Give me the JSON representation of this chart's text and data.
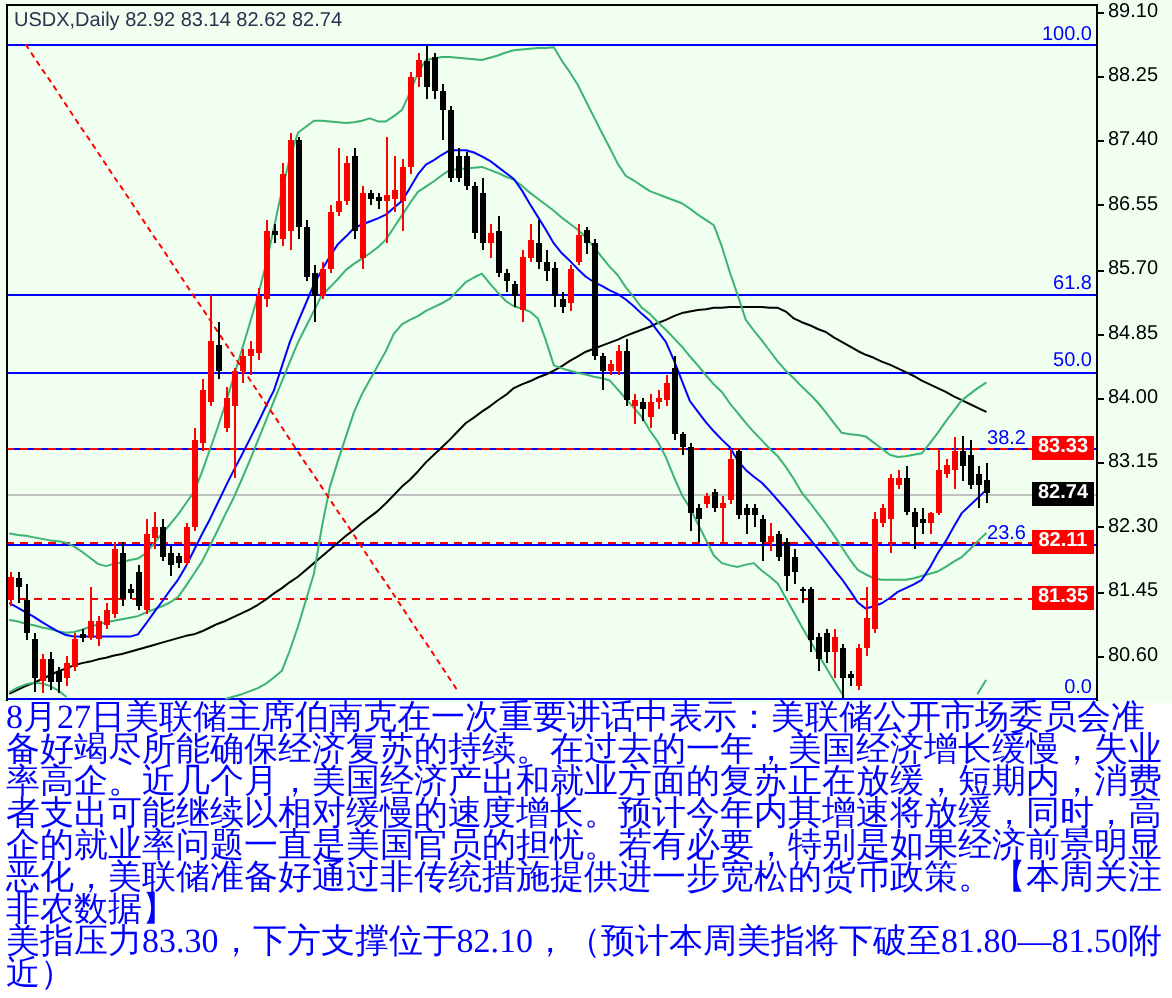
{
  "chart_data": {
    "type": "candlestick",
    "title": "USDX,Daily 82.92 83.14 82.62 82.74",
    "categories": [
      null,
      null,
      null,
      null,
      null,
      null,
      null,
      null,
      null,
      null,
      null,
      null,
      null,
      null,
      null,
      null,
      null,
      null,
      null,
      null,
      null,
      null,
      null,
      null,
      null,
      null,
      null,
      null,
      null,
      null,
      null,
      null,
      null,
      null,
      null,
      null,
      null,
      null,
      null,
      null,
      null,
      null,
      null,
      null,
      null,
      null,
      null,
      null,
      null,
      null,
      null,
      null,
      null,
      null,
      null,
      null,
      null,
      null,
      null,
      null,
      null,
      null,
      null,
      null,
      null,
      null,
      null,
      null,
      null,
      null,
      null,
      null,
      null,
      null,
      null,
      null,
      null,
      null,
      null,
      null,
      null,
      null,
      null,
      null,
      null,
      null,
      null,
      null,
      null,
      null,
      null,
      null,
      null,
      null,
      null,
      null,
      null,
      null,
      null,
      null,
      null,
      null,
      null,
      null,
      null,
      null,
      null,
      null,
      null,
      null,
      null,
      null,
      null,
      null,
      null,
      null,
      null,
      null,
      null,
      null,
      null,
      null,
      null
    ],
    "ohlc": [
      [
        81.33,
        81.7,
        81.25,
        81.64
      ],
      [
        81.62,
        81.7,
        81.3,
        81.5
      ],
      [
        81.33,
        81.55,
        80.8,
        80.9
      ],
      [
        80.82,
        80.9,
        80.12,
        80.3
      ],
      [
        80.27,
        80.62,
        80.1,
        80.55
      ],
      [
        80.55,
        80.65,
        80.15,
        80.25
      ],
      [
        80.4,
        80.45,
        80.1,
        80.25
      ],
      [
        80.3,
        80.6,
        80.2,
        80.5
      ],
      [
        80.45,
        80.9,
        80.4,
        80.82
      ],
      [
        80.88,
        80.95,
        80.78,
        80.83
      ],
      [
        80.83,
        81.5,
        80.8,
        81.05
      ],
      [
        80.82,
        81.12,
        80.72,
        81.05
      ],
      [
        81.0,
        81.3,
        80.95,
        81.2
      ],
      [
        81.15,
        82.1,
        81.1,
        82.0
      ],
      [
        81.95,
        82.1,
        81.25,
        81.35
      ],
      [
        81.48,
        81.55,
        81.35,
        81.42
      ],
      [
        81.7,
        81.8,
        81.2,
        81.25
      ],
      [
        81.2,
        82.4,
        81.15,
        82.2
      ],
      [
        82.15,
        82.5,
        82.0,
        82.3
      ],
      [
        82.3,
        82.4,
        81.85,
        81.9
      ],
      [
        81.95,
        82.05,
        81.65,
        81.8
      ],
      [
        81.92,
        81.95,
        81.75,
        81.82
      ],
      [
        81.82,
        82.35,
        81.8,
        82.3
      ],
      [
        82.3,
        83.6,
        82.25,
        83.45
      ],
      [
        83.4,
        84.25,
        83.3,
        84.1
      ],
      [
        83.95,
        85.36,
        83.9,
        84.75
      ],
      [
        84.7,
        85.0,
        84.25,
        84.35
      ],
      [
        83.6,
        84.15,
        83.55,
        84.0
      ],
      [
        83.9,
        84.4,
        82.95,
        84.35
      ],
      [
        84.35,
        84.65,
        84.2,
        84.55
      ],
      [
        84.55,
        84.75,
        84.3,
        84.65
      ],
      [
        84.6,
        85.45,
        84.5,
        85.35
      ],
      [
        85.3,
        86.35,
        85.2,
        86.2
      ],
      [
        86.2,
        86.3,
        86.05,
        86.15
      ],
      [
        86.1,
        87.1,
        86.0,
        86.95
      ],
      [
        86.2,
        87.5,
        85.95,
        87.4
      ],
      [
        87.4,
        87.45,
        86.1,
        86.25
      ],
      [
        86.25,
        86.35,
        85.55,
        85.6
      ],
      [
        85.65,
        85.75,
        85.0,
        85.35
      ],
      [
        85.35,
        85.8,
        85.3,
        85.7
      ],
      [
        85.7,
        86.55,
        85.65,
        86.45
      ],
      [
        86.45,
        87.3,
        86.4,
        86.6
      ],
      [
        86.6,
        87.2,
        86.55,
        87.1
      ],
      [
        87.2,
        87.3,
        86.1,
        86.2
      ],
      [
        85.85,
        86.8,
        85.7,
        86.7
      ],
      [
        86.7,
        86.75,
        86.55,
        86.63
      ],
      [
        86.65,
        86.7,
        86.5,
        86.6
      ],
      [
        86.6,
        87.45,
        86.05,
        86.68
      ],
      [
        86.62,
        87.2,
        86.45,
        86.75
      ],
      [
        86.6,
        87.15,
        86.2,
        87.05
      ],
      [
        87.05,
        88.3,
        86.95,
        88.24
      ],
      [
        88.24,
        88.55,
        88.1,
        88.46
      ],
      [
        88.45,
        88.66,
        87.95,
        88.1
      ],
      [
        88.5,
        88.55,
        87.95,
        88.05
      ],
      [
        88.05,
        88.15,
        87.4,
        87.8
      ],
      [
        87.8,
        87.85,
        86.85,
        86.9
      ],
      [
        87.2,
        87.3,
        86.85,
        86.9
      ],
      [
        87.2,
        87.25,
        86.75,
        86.8
      ],
      [
        86.8,
        86.85,
        86.1,
        86.18
      ],
      [
        86.7,
        86.9,
        85.95,
        86.05
      ],
      [
        86.05,
        86.3,
        85.85,
        86.18
      ],
      [
        86.2,
        86.4,
        85.6,
        85.65
      ],
      [
        85.65,
        85.7,
        85.4,
        85.55
      ],
      [
        85.5,
        85.55,
        85.2,
        85.35
      ],
      [
        85.16,
        85.95,
        85.0,
        85.86
      ],
      [
        85.85,
        86.3,
        85.8,
        86.08
      ],
      [
        86.05,
        86.35,
        85.7,
        85.8
      ],
      [
        85.8,
        85.95,
        85.55,
        85.68
      ],
      [
        85.72,
        85.8,
        85.2,
        85.35
      ],
      [
        85.3,
        85.4,
        85.12,
        85.2
      ],
      [
        85.25,
        85.75,
        85.15,
        85.7
      ],
      [
        85.8,
        86.3,
        85.75,
        86.15
      ],
      [
        86.22,
        86.25,
        85.9,
        86.05
      ],
      [
        86.05,
        86.1,
        84.5,
        84.55
      ],
      [
        84.55,
        84.6,
        84.1,
        84.35
      ],
      [
        84.35,
        84.5,
        84.3,
        84.45
      ],
      [
        84.35,
        84.7,
        84.3,
        84.62
      ],
      [
        84.62,
        84.78,
        83.9,
        83.97
      ],
      [
        83.9,
        84.05,
        83.65,
        83.97
      ],
      [
        83.95,
        84.0,
        83.7,
        83.85
      ],
      [
        83.75,
        84.05,
        83.6,
        83.95
      ],
      [
        83.95,
        84.1,
        83.85,
        84.0
      ],
      [
        83.97,
        84.3,
        83.9,
        84.2
      ],
      [
        84.4,
        84.55,
        83.45,
        83.52
      ],
      [
        83.52,
        83.55,
        83.25,
        83.35
      ],
      [
        83.35,
        83.4,
        82.25,
        82.48
      ],
      [
        82.55,
        82.6,
        82.1,
        82.4
      ],
      [
        82.6,
        82.75,
        82.55,
        82.7
      ],
      [
        82.76,
        82.8,
        82.5,
        82.55
      ],
      [
        82.55,
        82.7,
        82.1,
        82.62
      ],
      [
        82.65,
        83.33,
        82.6,
        83.2
      ],
      [
        83.3,
        83.33,
        82.4,
        82.45
      ],
      [
        82.55,
        82.6,
        82.2,
        82.45
      ],
      [
        82.55,
        82.6,
        82.3,
        82.45
      ],
      [
        82.4,
        82.45,
        81.85,
        82.1
      ],
      [
        82.1,
        82.35,
        81.98,
        82.18
      ],
      [
        82.2,
        82.25,
        81.85,
        81.9
      ],
      [
        82.1,
        82.15,
        81.45,
        81.65
      ],
      [
        81.9,
        82.0,
        81.55,
        81.7
      ],
      [
        81.48,
        81.5,
        81.3,
        81.45
      ],
      [
        81.48,
        81.5,
        80.65,
        80.8
      ],
      [
        80.85,
        80.9,
        80.4,
        80.55
      ],
      [
        80.9,
        80.95,
        80.5,
        80.65
      ],
      [
        80.65,
        80.95,
        80.3,
        80.85
      ],
      [
        80.7,
        80.75,
        80.04,
        80.3
      ],
      [
        80.35,
        80.4,
        80.2,
        80.3
      ],
      [
        80.2,
        80.75,
        80.15,
        80.7
      ],
      [
        80.7,
        81.5,
        80.6,
        81.1
      ],
      [
        80.95,
        82.5,
        80.9,
        82.4
      ],
      [
        82.35,
        82.6,
        82.3,
        82.55
      ],
      [
        82.4,
        83.0,
        81.95,
        82.95
      ],
      [
        82.85,
        83.05,
        82.8,
        82.95
      ],
      [
        82.95,
        83.1,
        82.45,
        82.5
      ],
      [
        82.5,
        82.55,
        82.0,
        82.3
      ],
      [
        82.4,
        82.55,
        82.2,
        82.35
      ],
      [
        82.35,
        82.5,
        82.2,
        82.48
      ],
      [
        82.48,
        83.33,
        82.45,
        83.05
      ],
      [
        83.0,
        83.2,
        82.95,
        83.12
      ],
      [
        83.05,
        83.48,
        82.8,
        83.3
      ],
      [
        83.3,
        83.5,
        82.9,
        83.1
      ],
      [
        83.25,
        83.45,
        82.8,
        82.85
      ],
      [
        83.0,
        83.1,
        82.55,
        82.85
      ],
      [
        82.92,
        83.14,
        82.62,
        82.74
      ]
    ],
    "colors": [
      "#ff0000",
      "#000000",
      "#000000",
      "#000000",
      "#ff0000",
      "#000000",
      "#000000",
      "#ff0000",
      "#ff0000",
      "#000000",
      "#ff0000",
      "#ff0000",
      "#ff0000",
      "#ff0000",
      "#000000",
      "#000000",
      "#000000",
      "#ff0000",
      "#ff0000",
      "#000000",
      "#000000",
      "#000000",
      "#ff0000",
      "#ff0000",
      "#ff0000",
      "#ff0000",
      "#000000",
      "#ff0000",
      "#ff0000",
      "#ff0000",
      "#ff0000",
      "#ff0000",
      "#ff0000",
      "#000000",
      "#ff0000",
      "#ff0000",
      "#000000",
      "#000000",
      "#000000",
      "#ff0000",
      "#ff0000",
      "#ff0000",
      "#ff0000",
      "#000000",
      "#ff0000",
      "#000000",
      "#000000",
      "#ff0000",
      "#ff0000",
      "#ff0000",
      "#ff0000",
      "#ff0000",
      "#000000",
      "#000000",
      "#000000",
      "#000000",
      "#000000",
      "#000000",
      "#000000",
      "#000000",
      "#ff0000",
      "#000000",
      "#000000",
      "#000000",
      "#ff0000",
      "#ff0000",
      "#000000",
      "#000000",
      "#000000",
      "#000000",
      "#ff0000",
      "#ff0000",
      "#000000",
      "#000000",
      "#000000",
      "#ff0000",
      "#ff0000",
      "#000000",
      "#ff0000",
      "#000000",
      "#ff0000",
      "#ff0000",
      "#ff0000",
      "#000000",
      "#000000",
      "#000000",
      "#000000",
      "#ff0000",
      "#000000",
      "#ff0000",
      "#ff0000",
      "#000000",
      "#000000",
      "#000000",
      "#000000",
      "#ff0000",
      "#000000",
      "#000000",
      "#000000",
      "#000000",
      "#000000",
      "#000000",
      "#000000",
      "#ff0000",
      "#000000",
      "#000000",
      "#ff0000",
      "#ff0000",
      "#ff0000",
      "#ff0000",
      "#ff0000",
      "#ff0000",
      "#000000",
      "#000000",
      "#000000",
      "#ff0000",
      "#ff0000",
      "#ff0000",
      "#ff0000",
      "#000000",
      "#000000",
      "#000000",
      "#000000"
    ],
    "series": [
      {
        "type": "line",
        "color": "#000000",
        "values": [
          80.1,
          80.15,
          80.2,
          80.24,
          80.29,
          80.34,
          80.39,
          80.43,
          80.47,
          80.5,
          80.52,
          80.55,
          80.57,
          80.6,
          80.62,
          80.65,
          80.68,
          80.71,
          80.74,
          80.77,
          80.8,
          80.83,
          80.86,
          80.88,
          80.92,
          80.97,
          81.02,
          81.06,
          81.11,
          81.16,
          81.21,
          81.27,
          81.34,
          81.42,
          81.49,
          81.57,
          81.64,
          81.73,
          81.82,
          81.91,
          82.0,
          82.09,
          82.18,
          82.26,
          82.35,
          82.43,
          82.51,
          82.61,
          82.72,
          82.83,
          82.92,
          83.03,
          83.15,
          83.25,
          83.35,
          83.45,
          83.56,
          83.67,
          83.74,
          83.82,
          83.89,
          83.97,
          84.04,
          84.13,
          84.18,
          84.22,
          84.27,
          84.31,
          84.36,
          84.42,
          84.49,
          84.55,
          84.61,
          84.65,
          84.69,
          84.73,
          84.77,
          84.82,
          84.86,
          84.9,
          84.94,
          84.99,
          85.03,
          85.08,
          85.12,
          85.14,
          85.16,
          85.17,
          85.19,
          85.19,
          85.2,
          85.2,
          85.2,
          85.2,
          85.2,
          85.19,
          85.19,
          85.14,
          85.05,
          85.0,
          84.96,
          84.91,
          84.87,
          84.8,
          84.74,
          84.68,
          84.62,
          84.57,
          84.53,
          84.48,
          84.44,
          84.39,
          84.34,
          84.29,
          84.23,
          84.18,
          84.13,
          84.08,
          84.02,
          83.97,
          83.92,
          83.87,
          83.82
        ]
      },
      {
        "type": "line",
        "color": "#3cb371",
        "values": [
          82.21,
          82.19,
          82.18,
          82.16,
          82.14,
          82.12,
          82.11,
          82.09,
          82.04,
          81.97,
          81.89,
          81.81,
          81.78,
          81.81,
          81.83,
          81.86,
          81.88,
          81.95,
          82.08,
          82.21,
          82.33,
          82.46,
          82.61,
          82.76,
          83.02,
          83.32,
          83.62,
          83.94,
          84.29,
          84.64,
          84.99,
          85.35,
          85.76,
          86.25,
          86.74,
          87.17,
          87.5,
          87.58,
          87.66,
          87.66,
          87.65,
          87.64,
          87.63,
          87.64,
          87.66,
          87.69,
          87.65,
          87.65,
          87.72,
          87.8,
          88.03,
          88.29,
          88.46,
          88.48,
          88.5,
          88.5,
          88.49,
          88.48,
          88.47,
          88.46,
          88.49,
          88.52,
          88.56,
          88.59,
          88.6,
          88.61,
          88.62,
          88.62,
          88.63,
          88.45,
          88.3,
          88.13,
          87.92,
          87.71,
          87.5,
          87.3,
          87.09,
          86.93,
          86.87,
          86.8,
          86.73,
          86.69,
          86.65,
          86.61,
          86.57,
          86.5,
          86.42,
          86.35,
          86.28,
          86.0,
          85.66,
          85.35,
          85.03,
          84.89,
          84.76,
          84.62,
          84.48,
          84.36,
          84.26,
          84.15,
          84.05,
          83.94,
          83.81,
          83.67,
          83.54,
          83.52,
          83.51,
          83.49,
          83.41,
          83.33,
          83.25,
          83.22,
          83.23,
          83.25,
          83.27,
          83.4,
          83.54,
          83.69,
          83.83,
          83.97,
          84.05,
          84.13,
          84.2
        ]
      },
      {
        "type": "line",
        "color": "#3cb371",
        "values": [
          81.07,
          81.05,
          81.02,
          81.0,
          80.97,
          80.95,
          80.92,
          80.9,
          80.91,
          80.94,
          80.98,
          81.01,
          81.04,
          81.06,
          81.08,
          81.1,
          81.12,
          81.17,
          81.21,
          81.25,
          81.3,
          81.37,
          81.52,
          81.68,
          81.84,
          82.05,
          82.26,
          82.48,
          82.69,
          82.93,
          83.18,
          83.44,
          83.7,
          83.96,
          84.22,
          84.48,
          84.73,
          84.94,
          85.15,
          85.36,
          85.46,
          85.57,
          85.69,
          85.77,
          85.84,
          85.91,
          85.99,
          86.09,
          86.25,
          86.41,
          86.57,
          86.72,
          86.79,
          86.86,
          86.94,
          87.01,
          87.02,
          87.03,
          87.04,
          87.05,
          87.01,
          86.97,
          86.92,
          86.88,
          86.8,
          86.71,
          86.63,
          86.55,
          86.47,
          86.38,
          86.3,
          86.22,
          86.12,
          85.99,
          85.86,
          85.73,
          85.62,
          85.46,
          85.33,
          85.19,
          85.11,
          85.0,
          84.9,
          84.79,
          84.68,
          84.55,
          84.43,
          84.3,
          84.18,
          84.08,
          83.93,
          83.8,
          83.67,
          83.55,
          83.44,
          83.33,
          83.23,
          83.09,
          82.93,
          82.75,
          82.62,
          82.48,
          82.34,
          82.19,
          82.03,
          81.87,
          81.73,
          81.67,
          81.62,
          81.6,
          81.6,
          81.6,
          81.6,
          81.62,
          81.65,
          81.68,
          81.71,
          81.77,
          81.84,
          81.9,
          82.0,
          82.11,
          82.21
        ]
      },
      {
        "type": "line",
        "color": "#3cb371",
        "values": [
          80.12,
          80.18,
          80.22,
          80.24,
          80.23,
          80.2,
          80.14,
          80.06,
          null,
          null,
          null,
          null,
          null,
          null,
          null,
          null,
          null,
          null,
          null,
          null,
          null,
          null,
          null,
          null,
          null,
          null,
          null,
          80.03,
          80.06,
          80.09,
          80.13,
          80.17,
          80.23,
          80.31,
          80.4,
          80.67,
          80.98,
          81.33,
          81.68,
          82.3,
          82.83,
          83.17,
          83.49,
          83.81,
          84.05,
          84.24,
          84.43,
          84.62,
          84.85,
          84.97,
          85.03,
          85.08,
          85.15,
          85.2,
          85.25,
          85.31,
          85.42,
          85.53,
          85.59,
          85.64,
          85.51,
          85.39,
          85.28,
          85.21,
          85.18,
          85.14,
          85.05,
          84.76,
          84.43,
          84.39,
          84.36,
          84.33,
          84.31,
          84.28,
          84.26,
          84.23,
          84.11,
          83.99,
          83.87,
          83.75,
          83.57,
          83.42,
          83.22,
          82.96,
          82.72,
          82.55,
          82.34,
          82.13,
          81.92,
          81.82,
          81.79,
          81.77,
          81.8,
          81.82,
          81.72,
          81.64,
          81.55,
          81.36,
          81.17,
          80.98,
          80.8,
          80.62,
          80.45,
          80.27,
          80.1,
          null,
          null,
          null,
          null,
          null,
          null,
          null,
          null,
          null,
          null,
          null,
          null,
          null,
          null,
          null,
          null,
          80.1,
          80.27
        ]
      },
      {
        "type": "line",
        "color": "#0000ff",
        "values": [
          81.29,
          81.23,
          81.17,
          81.11,
          81.04,
          80.98,
          80.92,
          80.87,
          80.85,
          80.85,
          80.85,
          80.85,
          80.85,
          80.85,
          80.85,
          80.85,
          80.88,
          81.02,
          81.17,
          81.31,
          81.46,
          81.6,
          81.78,
          81.99,
          82.2,
          82.4,
          82.62,
          82.84,
          83.05,
          83.25,
          83.46,
          83.67,
          83.89,
          84.1,
          84.42,
          84.74,
          85.0,
          85.25,
          85.5,
          85.69,
          85.87,
          86.03,
          86.13,
          86.24,
          86.29,
          86.33,
          86.37,
          86.42,
          86.51,
          86.6,
          86.77,
          86.95,
          87.08,
          87.14,
          87.21,
          87.27,
          87.27,
          87.27,
          87.24,
          87.19,
          87.13,
          87.05,
          86.97,
          86.89,
          86.74,
          86.56,
          86.39,
          86.22,
          86.04,
          85.91,
          85.81,
          85.7,
          85.6,
          85.53,
          85.48,
          85.42,
          85.37,
          85.3,
          85.21,
          85.11,
          85.02,
          84.88,
          84.74,
          84.5,
          84.23,
          83.96,
          83.82,
          83.68,
          83.56,
          83.45,
          83.35,
          83.17,
          83.05,
          82.96,
          82.88,
          82.77,
          82.65,
          82.53,
          82.4,
          82.27,
          82.14,
          82.01,
          81.88,
          81.74,
          81.61,
          81.46,
          81.3,
          81.22,
          81.25,
          81.29,
          81.36,
          81.44,
          81.49,
          81.54,
          81.6,
          81.76,
          81.95,
          82.11,
          82.3,
          82.48,
          82.58,
          82.68,
          82.78
        ]
      },
      {
        "type": "line",
        "color": "#ff0000",
        "line_style": "dotted",
        "values": [
          null,
          null,
          88.66,
          88.5,
          88.34,
          88.19,
          88.03,
          87.87,
          87.71,
          87.55,
          87.4,
          87.24,
          87.08,
          86.92,
          86.77,
          86.61,
          86.45,
          86.29,
          86.13,
          85.98,
          85.82,
          85.66,
          85.5,
          85.34,
          85.19,
          85.03,
          84.87,
          84.71,
          84.55,
          84.4,
          84.24,
          84.08,
          83.92,
          83.77,
          83.61,
          83.45,
          83.29,
          83.13,
          82.98,
          82.82,
          82.66,
          82.5,
          82.35,
          82.19,
          82.03,
          81.87,
          81.71,
          81.56,
          81.4,
          81.24,
          81.08,
          80.92,
          80.77,
          80.61,
          80.45,
          80.29,
          80.13,
          null,
          null,
          null,
          null,
          null,
          null,
          null,
          null,
          null,
          null,
          null,
          null,
          null,
          null,
          null,
          null,
          null,
          null,
          null,
          null,
          null,
          null,
          null,
          null,
          null,
          null,
          null,
          null,
          null,
          null,
          null,
          null,
          null,
          null,
          null,
          null,
          null,
          null,
          null,
          null,
          null,
          null,
          null,
          null,
          null,
          null,
          null,
          null,
          null,
          null,
          null,
          null,
          null,
          null,
          null,
          null,
          null,
          null,
          null,
          null,
          null,
          null,
          null,
          null,
          null,
          null
        ]
      }
    ],
    "ylim": [
      80.0,
      89.2
    ],
    "yticks": [
      {
        "value": 89.1,
        "label": "89.10"
      },
      {
        "value": 88.25,
        "label": "88.25"
      },
      {
        "value": 87.4,
        "label": "87.40"
      },
      {
        "value": 86.55,
        "label": "86.55"
      },
      {
        "value": 85.7,
        "label": "85.70"
      },
      {
        "value": 84.85,
        "label": "84.85"
      },
      {
        "value": 84.0,
        "label": "84.00"
      },
      {
        "value": 83.15,
        "label": "83.15"
      },
      {
        "value": 82.3,
        "label": "82.30"
      },
      {
        "value": 81.45,
        "label": "81.45"
      },
      {
        "value": 80.6,
        "label": "80.60"
      }
    ],
    "tick_labels": "y",
    "ref_lines": [
      {
        "axis": "y",
        "value": 88.66,
        "color": "#0000ff"
      },
      {
        "axis": "y",
        "value": 85.37,
        "color": "#0000ff"
      },
      {
        "axis": "y",
        "value": 84.35,
        "color": "#0000ff"
      },
      {
        "axis": "y",
        "value": 83.33,
        "color": "#0000ff"
      },
      {
        "axis": "y",
        "value": 82.07,
        "color": "#0000ff"
      },
      {
        "axis": "y",
        "value": 80.04,
        "color": "#0000ff"
      },
      {
        "axis": "y",
        "value": 83.33,
        "label": "83.33",
        "color": "#ff0000",
        "line_style": "dashed"
      },
      {
        "axis": "y",
        "value": 82.11,
        "label": "82.11",
        "color": "#ff0000",
        "line_style": "dashed"
      },
      {
        "axis": "y",
        "value": 81.35,
        "label": "81.35",
        "color": "#ff0000",
        "line_style": "dashed"
      },
      {
        "axis": "y",
        "value": 82.74,
        "label": "82.74",
        "color": "#c0c0c0",
        "line_style": "solid"
      }
    ],
    "annotations": [
      {
        "text": "100.0",
        "y": 88.66
      },
      {
        "text": "61.8",
        "y": 85.37
      },
      {
        "text": "50.0",
        "y": 84.35
      },
      {
        "text": "38.2",
        "y": 83.33
      },
      {
        "text": "23.6",
        "y": 82.07
      },
      {
        "text": "0.0",
        "y": 80.04
      },
      "8月27日美联储主席伯南克在一次重要讲话中表示：美联储公开市场委员会准备好竭尽所能确保经济复苏的持续。在过去的一年，美国经济增长缓慢，失业率高企。近几个月，美国经济产出和就业方面的复苏正在放缓，短期内，消费者支出可能继续以相对缓慢的速度增长。预计今年内其增速将放缓，同时，高企的就业率问题一直是美国官员的担忧。若有必要，特别是如果经济前景明显恶化，美联储准备好通过非传统措施提供进一步宽松的货币政策。【本周关注非农数据】",
      "美指压力83.30，下方支撑位于82.10，（预计本周美指将下破至81.80—81.50附近）"
    ]
  }
}
